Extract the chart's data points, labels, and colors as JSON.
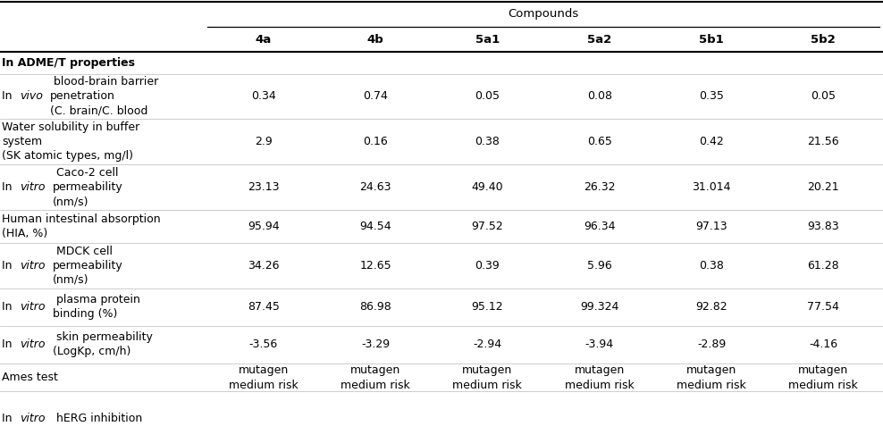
{
  "compounds_header": "Compounds",
  "col_headers": [
    "4a",
    "4b",
    "5a1",
    "5a2",
    "5b1",
    "5b2"
  ],
  "row_labels": [
    [
      "In ADME/T properties",
      "",
      ""
    ],
    [
      "In ",
      "vivo",
      " blood-brain barrier\npenetration\n(C. brain/C. blood"
    ],
    [
      "Water solubility in buffer\nsystem\n(SK atomic types, mg/l)",
      "",
      ""
    ],
    [
      "In ",
      "vitro",
      " Caco-2 cell\npermeability\n(nm/s)"
    ],
    [
      "Human intestinal absorption\n(HIA, %)",
      "",
      ""
    ],
    [
      "In ",
      "vitro",
      " MDCK cell\npermeability\n(nm/s)"
    ],
    [
      "In ",
      "vitro",
      " plasma protein\nbinding (%)"
    ],
    [
      "In ",
      "vitro",
      " skin permeability\n(LogKp, cm/h)"
    ],
    [
      "Ames test",
      "",
      ""
    ],
    [
      "In ",
      "vitro",
      " hERG inhibition"
    ]
  ],
  "row_bold": [
    true,
    false,
    false,
    false,
    false,
    false,
    false,
    false,
    false,
    false
  ],
  "data": [
    [
      "",
      "",
      "",
      "",
      "",
      ""
    ],
    [
      "0.34",
      "0.74",
      "0.05",
      "0.08",
      "0.35",
      "0.05"
    ],
    [
      "2.9",
      "0.16",
      "0.38",
      "0.65",
      "0.42",
      "21.56"
    ],
    [
      "23.13",
      "24.63",
      "49.40",
      "26.32",
      "31.014",
      "20.21"
    ],
    [
      "95.94",
      "94.54",
      "97.52",
      "96.34",
      "97.13",
      "93.83"
    ],
    [
      "34.26",
      "12.65",
      "0.39",
      "5.96",
      "0.38",
      "61.28"
    ],
    [
      "87.45",
      "86.98",
      "95.12",
      "99.324",
      "92.82",
      "77.54"
    ],
    [
      "-3.56",
      "-3.29",
      "-2.94",
      "-3.94",
      "-2.89",
      "-4.16"
    ],
    [
      "mutagen\nmedium risk",
      "mutagen\nmedium risk",
      "mutagen\nmedium risk",
      "mutagen\nmedium risk",
      "mutagen\nmedium risk",
      "mutagen\nmedium risk"
    ],
    [
      "",
      "",
      "",
      "",
      "",
      ""
    ]
  ],
  "bg_color": "#ffffff",
  "text_color": "#000000",
  "fontsize": 9.0,
  "header_fontsize": 9.5
}
